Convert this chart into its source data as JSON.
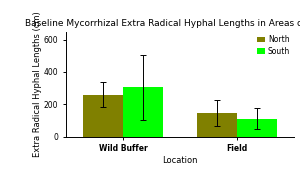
{
  "title": "Baseline Mycorrhizal Extra Radical Hyphal Lengths in Areas of Farm",
  "xlabel": "Location",
  "ylabel": "Extra Radical Hyphal Lengths (cm)",
  "categories": [
    "Wild Buffer",
    "Field"
  ],
  "series": [
    {
      "name": "North",
      "values": [
        260,
        145
      ],
      "errors": [
        80,
        80
      ],
      "color": "#808000"
    },
    {
      "name": "South",
      "values": [
        305,
        110
      ],
      "errors": [
        200,
        65
      ],
      "color": "#00FF00"
    }
  ],
  "ylim": [
    0,
    650
  ],
  "yticks": [
    0,
    200,
    400,
    600
  ],
  "bar_width": 0.28,
  "background_color": "#ffffff",
  "title_fontsize": 6.5,
  "axis_fontsize": 6.0,
  "tick_fontsize": 5.5,
  "legend_fontsize": 5.5
}
